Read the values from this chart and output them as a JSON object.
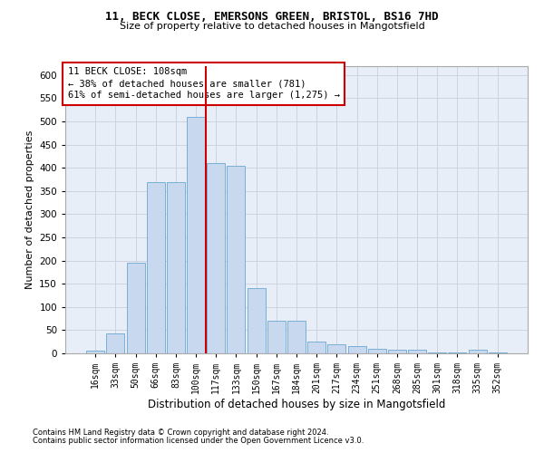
{
  "title1": "11, BECK CLOSE, EMERSONS GREEN, BRISTOL, BS16 7HD",
  "title2": "Size of property relative to detached houses in Mangotsfield",
  "xlabel": "Distribution of detached houses by size in Mangotsfield",
  "ylabel": "Number of detached properties",
  "footnote1": "Contains HM Land Registry data © Crown copyright and database right 2024.",
  "footnote2": "Contains public sector information licensed under the Open Government Licence v3.0.",
  "bar_labels": [
    "16sqm",
    "33sqm",
    "50sqm",
    "66sqm",
    "83sqm",
    "100sqm",
    "117sqm",
    "133sqm",
    "150sqm",
    "167sqm",
    "184sqm",
    "201sqm",
    "217sqm",
    "234sqm",
    "251sqm",
    "268sqm",
    "285sqm",
    "301sqm",
    "318sqm",
    "335sqm",
    "352sqm"
  ],
  "bar_values": [
    5,
    42,
    195,
    370,
    370,
    510,
    410,
    405,
    140,
    70,
    70,
    25,
    20,
    15,
    10,
    7,
    7,
    2,
    2,
    7,
    2
  ],
  "bar_color": "#c8d8ee",
  "bar_edge_color": "#7aafd4",
  "grid_color": "#c8d0dc",
  "bg_color": "#e8eef8",
  "vline_color": "#cc0000",
  "annotation_text": "11 BECK CLOSE: 108sqm\n← 38% of detached houses are smaller (781)\n61% of semi-detached houses are larger (1,275) →",
  "annotation_box_color": "#cc0000",
  "ylim": [
    0,
    620
  ],
  "yticks": [
    0,
    50,
    100,
    150,
    200,
    250,
    300,
    350,
    400,
    450,
    500,
    550,
    600
  ]
}
